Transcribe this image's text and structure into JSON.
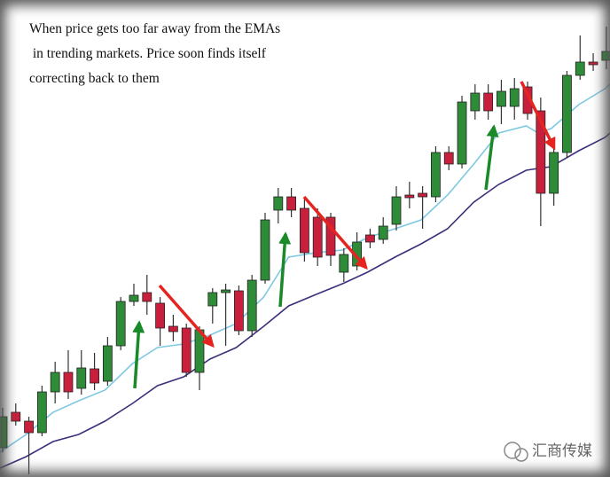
{
  "annotation": [
    "When price gets too far away from the EMAs",
    " in trending markets. Price soon finds itself",
    "correcting back to them"
  ],
  "watermark": "汇商传媒",
  "chart_data": {
    "type": "candlestick",
    "x": [
      1,
      2,
      3,
      4,
      5,
      6,
      7,
      8,
      9,
      10,
      11,
      12,
      13,
      14,
      15,
      16,
      17,
      18,
      19,
      20,
      21,
      22,
      23,
      24,
      25,
      26,
      27,
      28,
      29,
      30,
      31,
      32,
      33,
      34,
      35,
      36,
      37,
      38,
      39,
      40,
      41,
      42,
      43,
      44,
      45,
      46,
      47
    ],
    "open": [
      33,
      73,
      63,
      50,
      96,
      118,
      100,
      122,
      108,
      148,
      198,
      208,
      196,
      170,
      168,
      118,
      193,
      208,
      210,
      165,
      222,
      301,
      316,
      303,
      293,
      293,
      231,
      238,
      273,
      268,
      285,
      318,
      320,
      316,
      366,
      353,
      413,
      433,
      418,
      418,
      440,
      413,
      320,
      366,
      453,
      468,
      470
    ],
    "close": [
      68,
      63,
      50,
      96,
      118,
      96,
      123,
      106,
      148,
      198,
      205,
      198,
      168,
      164,
      118,
      166,
      208,
      211,
      165,
      222,
      290,
      316,
      301,
      253,
      248,
      250,
      251,
      265,
      265,
      283,
      316,
      315,
      316,
      366,
      353,
      423,
      433,
      413,
      435,
      438,
      410,
      320,
      366,
      453,
      468,
      465,
      480
    ],
    "high": [
      78,
      83,
      68,
      103,
      130,
      143,
      143,
      140,
      158,
      203,
      218,
      228,
      203,
      183,
      173,
      170,
      213,
      218,
      216,
      228,
      298,
      326,
      326,
      316,
      303,
      298,
      258,
      276,
      280,
      293,
      328,
      333,
      328,
      373,
      373,
      430,
      443,
      443,
      448,
      450,
      446,
      428,
      373,
      458,
      498,
      478,
      508
    ],
    "low": [
      28,
      58,
      3,
      46,
      83,
      88,
      93,
      98,
      103,
      143,
      193,
      183,
      148,
      153,
      113,
      98,
      173,
      148,
      160,
      158,
      218,
      286,
      293,
      243,
      238,
      238,
      220,
      233,
      258,
      263,
      278,
      303,
      280,
      310,
      346,
      348,
      403,
      403,
      398,
      403,
      403,
      283,
      306,
      360,
      448,
      458,
      460
    ],
    "up_color": "#2e8b37",
    "down_color": "#c8203c",
    "series": [
      {
        "color": "#7ec8e3",
        "x": [
          0.8,
          2.8,
          4.85,
          6.8,
          8.8,
          10.9,
          12.8,
          14.8,
          16.8,
          18.8,
          20.9,
          22.8,
          24.9,
          26.9,
          28.8,
          30.9,
          32.9,
          34.9,
          36.9,
          38.8,
          40.9,
          41.8,
          42.8,
          44.9,
          46.9,
          47.28
        ],
        "values": [
          28,
          48,
          73,
          86,
          98,
          128,
          146,
          150,
          160,
          173,
          203,
          248,
          253,
          256,
          270,
          280,
          290,
          318,
          353,
          388,
          396,
          388,
          393,
          420,
          438,
          443
        ]
      },
      {
        "color": "#3d2f7a",
        "x": [
          0.8,
          2.8,
          4.85,
          6.8,
          8.8,
          10.9,
          12.8,
          14.8,
          16.8,
          18.8,
          20.9,
          22.8,
          24.9,
          26.9,
          28.8,
          30.9,
          32.9,
          34.9,
          36.9,
          38.8,
          40.9,
          41.8,
          42.8,
          44.9,
          46.9,
          47.28
        ],
        "values": [
          10,
          23,
          40,
          48,
          63,
          83,
          103,
          113,
          133,
          146,
          170,
          193,
          206,
          218,
          231,
          248,
          263,
          280,
          310,
          330,
          346,
          348,
          350,
          368,
          383,
          388
        ]
      }
    ],
    "xlim": [
      0.8,
      47.28
    ],
    "ylim": [
      0,
      538
    ]
  }
}
